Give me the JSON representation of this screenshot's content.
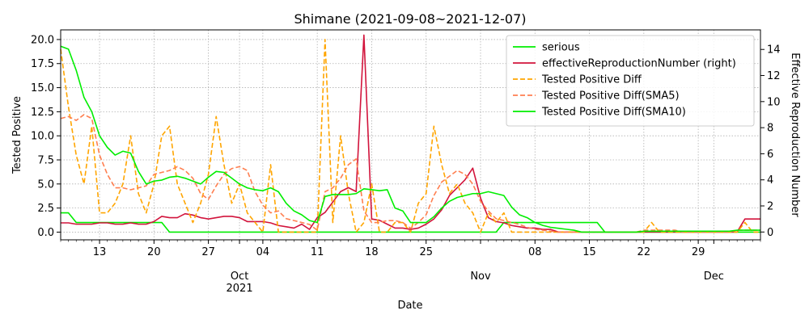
{
  "chart_data": {
    "type": "line",
    "title": "Shimane (2021-09-08~2021-12-07)",
    "xlabel": "Date",
    "ylabel": "Tested Positive",
    "y2label": "Effective Reproduction Number",
    "x_range": [
      "2021-09-08",
      "2021-12-07"
    ],
    "ylim": [
      -0.8,
      21
    ],
    "y2lim": [
      -0.6,
      15.5
    ],
    "y_ticks": [
      0.0,
      2.5,
      5.0,
      7.5,
      10.0,
      12.5,
      15.0,
      17.5,
      20.0
    ],
    "y_tick_labels": [
      "0.0",
      "2.5",
      "5.0",
      "7.5",
      "10.0",
      "12.5",
      "15.0",
      "17.5",
      "20.0"
    ],
    "y2_ticks": [
      0,
      2,
      4,
      6,
      8,
      10,
      12,
      14
    ],
    "y2_tick_labels": [
      "0",
      "2",
      "4",
      "6",
      "8",
      "10",
      "12",
      "14"
    ],
    "x_ticks": [
      {
        "date": "2021-09-13",
        "label": "13",
        "sublabel": ""
      },
      {
        "date": "2021-09-20",
        "label": "20",
        "sublabel": ""
      },
      {
        "date": "2021-09-27",
        "label": "27",
        "sublabel": ""
      },
      {
        "date": "2021-10-01",
        "label": "Oct",
        "sublabel": "2021"
      },
      {
        "date": "2021-10-04",
        "label": "04",
        "sublabel": ""
      },
      {
        "date": "2021-10-11",
        "label": "11",
        "sublabel": ""
      },
      {
        "date": "2021-10-18",
        "label": "18",
        "sublabel": ""
      },
      {
        "date": "2021-10-25",
        "label": "25",
        "sublabel": ""
      },
      {
        "date": "2021-11-01",
        "label": "Nov",
        "sublabel": ""
      },
      {
        "date": "2021-11-08",
        "label": "08",
        "sublabel": ""
      },
      {
        "date": "2021-11-15",
        "label": "15",
        "sublabel": ""
      },
      {
        "date": "2021-11-22",
        "label": "22",
        "sublabel": ""
      },
      {
        "date": "2021-11-29",
        "label": "29",
        "sublabel": ""
      },
      {
        "date": "2021-12-01",
        "label": "Dec",
        "sublabel": ""
      }
    ],
    "grid": true,
    "legend_position": "top-right",
    "series": [
      {
        "name": "serious",
        "axis": "left",
        "color": "#00ee00",
        "dash": "solid",
        "values": [
          2,
          2,
          1,
          1,
          1,
          1,
          1,
          1,
          1,
          1,
          1,
          1,
          1,
          1,
          0,
          0,
          0,
          0,
          0,
          0,
          0,
          0,
          0,
          0,
          0,
          0,
          0,
          0,
          0,
          0,
          0,
          0,
          0,
          0,
          0,
          0,
          0,
          0,
          0,
          0,
          0,
          0,
          0,
          0,
          0,
          0,
          0,
          0,
          0,
          0,
          0,
          0,
          0,
          0,
          0,
          0,
          0,
          1,
          1,
          1,
          1,
          1,
          1,
          1,
          1,
          1,
          1,
          1,
          1,
          1,
          0,
          0,
          0,
          0,
          0,
          0,
          0,
          0,
          0,
          0,
          0,
          0,
          0,
          0,
          0,
          0,
          0,
          0,
          0,
          0,
          0
        ]
      },
      {
        "name": "effectiveReproductionNumber (right)",
        "axis": "right",
        "color": "#d2143c",
        "dash": "solid",
        "values": [
          0.7,
          0.7,
          0.6,
          0.6,
          0.6,
          0.7,
          0.7,
          0.6,
          0.6,
          0.7,
          0.6,
          0.6,
          0.8,
          1.2,
          1.1,
          1.1,
          1.4,
          1.3,
          1.1,
          1.0,
          1.1,
          1.2,
          1.2,
          1.1,
          0.8,
          0.8,
          0.8,
          0.7,
          0.5,
          0.4,
          0.3,
          0.6,
          0.2,
          1.1,
          1.5,
          2.3,
          3.1,
          3.4,
          3.1,
          15.1,
          1.0,
          0.9,
          0.6,
          0.3,
          0.3,
          0.2,
          0.3,
          0.6,
          1.0,
          1.7,
          2.8,
          3.4,
          4.0,
          4.9,
          2.6,
          1.1,
          0.8,
          0.7,
          0.5,
          0.4,
          0.3,
          0.3,
          0.2,
          0.2,
          0.0,
          0.0,
          0.0,
          0.0,
          0.0,
          0.0,
          0.0,
          0.0,
          0.0,
          0.0,
          0.0,
          0.0,
          0.0,
          0.0,
          0.0,
          0.0,
          0.0,
          0.0,
          0.0,
          0.0,
          0.0,
          0.0,
          0.0,
          0.0,
          1.0,
          1.0,
          1.0
        ]
      },
      {
        "name": "Tested Positive Diff",
        "axis": "left",
        "color": "#ffa500",
        "dash": "dashed",
        "values": [
          19,
          13,
          8,
          5,
          11,
          2,
          2,
          3,
          5,
          10,
          4,
          2,
          5,
          10,
          11,
          5,
          3,
          1,
          3,
          6,
          12,
          7,
          3,
          5,
          2,
          1,
          0,
          7,
          0,
          0,
          0,
          0,
          0,
          0,
          20,
          1,
          10,
          4,
          0,
          1,
          5,
          0,
          0,
          1,
          1,
          0,
          3,
          4,
          11,
          7,
          4,
          5,
          3,
          2,
          0,
          2,
          1,
          2,
          0,
          0,
          0,
          0,
          0,
          0,
          0,
          0,
          0,
          0,
          0,
          0,
          0,
          0,
          0,
          0,
          0,
          0,
          1,
          0,
          0,
          0,
          0,
          0,
          0,
          0,
          0,
          0,
          0,
          0,
          1,
          0,
          0
        ]
      },
      {
        "name": "Tested Positive Diff(SMA5)",
        "axis": "left",
        "color": "#ff7f50",
        "dash": "dashed",
        "values": [
          11.8,
          12.0,
          11.6,
          12.2,
          11.8,
          8.0,
          6.0,
          4.6,
          4.6,
          4.4,
          4.6,
          4.8,
          6.0,
          6.2,
          6.4,
          6.8,
          6.4,
          5.6,
          4.0,
          3.4,
          4.8,
          6.0,
          6.6,
          6.8,
          6.4,
          4.2,
          2.8,
          2.0,
          2.2,
          1.4,
          1.2,
          1.0,
          0.8,
          0.2,
          4.2,
          4.6,
          5.6,
          7.0,
          7.6,
          2.2,
          1.0,
          1.0,
          1.2,
          1.2,
          1.0,
          0.4,
          1.0,
          1.8,
          3.8,
          5.2,
          5.8,
          6.4,
          6.0,
          5.0,
          3.2,
          2.2,
          1.4,
          1.2,
          1.0,
          0.8,
          0.5,
          0.3,
          0.2,
          0.1,
          0.0,
          0.0,
          0.0,
          0.0,
          0.0,
          0.0,
          0.0,
          0.0,
          0.0,
          0.0,
          0.0,
          0.2,
          0.2,
          0.2,
          0.2,
          0.2,
          0.0,
          0.0,
          0.0,
          0.0,
          0.0,
          0.0,
          0.0,
          0.2,
          0.2,
          0.2,
          0.2
        ]
      },
      {
        "name": "Tested Positive Diff(SMA10)",
        "axis": "left",
        "color": "#00ee00",
        "dash": "solid",
        "values": [
          19.3,
          19.0,
          16.8,
          14.0,
          12.5,
          10.0,
          8.8,
          8.0,
          8.4,
          8.2,
          6.3,
          5.0,
          5.3,
          5.4,
          5.7,
          5.8,
          5.6,
          5.3,
          5.0,
          5.7,
          6.3,
          6.2,
          5.6,
          5.0,
          4.6,
          4.4,
          4.3,
          4.6,
          4.2,
          3.0,
          2.2,
          1.8,
          1.2,
          1.0,
          3.7,
          3.9,
          3.9,
          3.9,
          4.0,
          4.5,
          4.4,
          4.3,
          4.4,
          2.5,
          2.2,
          1.0,
          1.0,
          1.0,
          1.6,
          2.5,
          3.2,
          3.6,
          3.8,
          4.0,
          4.0,
          4.2,
          4.0,
          3.8,
          2.6,
          1.8,
          1.5,
          1.0,
          0.7,
          0.5,
          0.4,
          0.3,
          0.2,
          0.0,
          0.0,
          0.0,
          0.0,
          0.0,
          0.0,
          0.0,
          0.0,
          0.1,
          0.1,
          0.1,
          0.1,
          0.1,
          0.1,
          0.1,
          0.1,
          0.1,
          0.1,
          0.1,
          0.1,
          0.2,
          0.2,
          0.2,
          0.2
        ]
      }
    ]
  }
}
